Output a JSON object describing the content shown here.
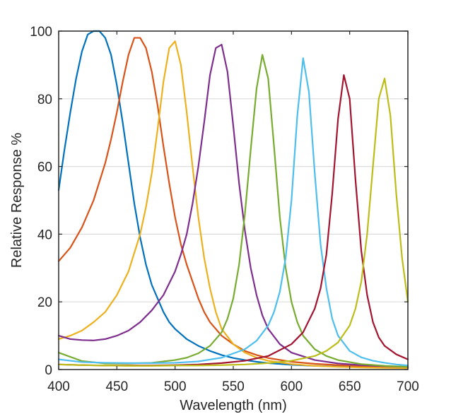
{
  "chart_data": {
    "type": "line",
    "title": "",
    "xlabel": "Wavelength (nm)",
    "ylabel": "Relative Response %",
    "xlim": [
      400,
      700
    ],
    "ylim": [
      0,
      100
    ],
    "xticks": [
      400,
      450,
      500,
      550,
      600,
      650,
      700
    ],
    "xtick_labels": [
      "400",
      "450",
      "500",
      "550",
      "600",
      "650",
      "700"
    ],
    "yticks": [
      0,
      20,
      40,
      60,
      80,
      100
    ],
    "ytick_labels": [
      "0",
      "20",
      "40",
      "60",
      "80",
      "100"
    ],
    "grid": "horizontal",
    "legend": "none",
    "series": [
      {
        "color": "#0072BD",
        "x": [
          400,
          405,
          410,
          415,
          420,
          425,
          430,
          435,
          440,
          445,
          450,
          455,
          460,
          465,
          470,
          475,
          480,
          485,
          490,
          495,
          500,
          510,
          520,
          530,
          540,
          550,
          560,
          570,
          580,
          600,
          620,
          640,
          660,
          680,
          700
        ],
        "y": [
          53,
          65,
          76,
          86,
          94,
          99,
          100,
          100,
          98,
          93,
          84,
          73,
          61,
          49,
          39,
          31,
          25,
          21,
          17,
          14,
          12,
          9,
          7,
          5.5,
          4.3,
          3.4,
          2.8,
          2.3,
          1.9,
          1.4,
          1.1,
          0.9,
          0.7,
          0.6,
          0.5
        ]
      },
      {
        "color": "#D95319",
        "x": [
          400,
          410,
          420,
          430,
          440,
          445,
          450,
          455,
          460,
          465,
          470,
          475,
          480,
          485,
          490,
          495,
          500,
          505,
          510,
          515,
          520,
          525,
          530,
          540,
          550,
          560,
          570,
          580,
          600,
          620,
          640,
          660,
          680,
          700
        ],
        "y": [
          32,
          36,
          42,
          50,
          61,
          68,
          76,
          85,
          93,
          98,
          98,
          95,
          88,
          78,
          66,
          55,
          45,
          37,
          31,
          26,
          21,
          17,
          14,
          10,
          7.5,
          5.5,
          4.3,
          3.4,
          2.3,
          1.7,
          1.3,
          1,
          0.8,
          0.6
        ]
      },
      {
        "color": "#EDB120",
        "x": [
          400,
          410,
          420,
          430,
          440,
          450,
          460,
          470,
          475,
          480,
          485,
          490,
          495,
          500,
          505,
          510,
          515,
          520,
          525,
          530,
          535,
          540,
          550,
          560,
          570,
          580,
          600,
          620,
          640,
          660,
          680,
          700
        ],
        "y": [
          9,
          10,
          11.5,
          14,
          17,
          22,
          29,
          40,
          48,
          58,
          71,
          85,
          95,
          97,
          90,
          76,
          60,
          45,
          33,
          24,
          17,
          12,
          7.5,
          5,
          3.5,
          2.6,
          1.6,
          1.1,
          0.8,
          0.6,
          0.5,
          0.4
        ]
      },
      {
        "color": "#7E2F8E",
        "x": [
          400,
          410,
          420,
          430,
          440,
          450,
          460,
          470,
          480,
          490,
          500,
          505,
          510,
          515,
          520,
          525,
          530,
          535,
          540,
          545,
          550,
          555,
          560,
          565,
          570,
          575,
          580,
          590,
          600,
          620,
          640,
          660,
          680,
          700
        ],
        "y": [
          10,
          9,
          8.7,
          8.6,
          9,
          10,
          11.5,
          14,
          17.5,
          22,
          29,
          34,
          40,
          49,
          60,
          73,
          87,
          95,
          96,
          88,
          72,
          55,
          41,
          30,
          22,
          16,
          12,
          7.5,
          5,
          2.8,
          1.8,
          1.3,
          1,
          0.8
        ]
      },
      {
        "color": "#77AC30",
        "x": [
          400,
          420,
          440,
          460,
          480,
          500,
          510,
          520,
          530,
          540,
          545,
          550,
          555,
          560,
          565,
          570,
          575,
          580,
          585,
          590,
          595,
          600,
          605,
          610,
          620,
          630,
          640,
          660,
          680,
          700
        ],
        "y": [
          5,
          2.5,
          1.8,
          1.8,
          2,
          2.8,
          3.5,
          4.8,
          7,
          11,
          15,
          21,
          31,
          46,
          65,
          83,
          93,
          86,
          66,
          45,
          30,
          20,
          14,
          10,
          6,
          4,
          2.8,
          1.6,
          1.1,
          0.8
        ]
      },
      {
        "color": "#4DBEEE",
        "x": [
          400,
          420,
          440,
          460,
          480,
          500,
          520,
          540,
          560,
          570,
          580,
          585,
          590,
          595,
          600,
          605,
          610,
          615,
          620,
          625,
          630,
          635,
          640,
          650,
          660,
          670,
          680,
          690,
          700
        ],
        "y": [
          3,
          2.2,
          2,
          1.9,
          1.9,
          2,
          2.4,
          3.5,
          6,
          8.5,
          13,
          17,
          23,
          33,
          50,
          75,
          92,
          82,
          58,
          37,
          24,
          15,
          10,
          5.5,
          3.6,
          2.6,
          2,
          1.5,
          1.2
        ]
      },
      {
        "color": "#A2142F",
        "x": [
          400,
          420,
          440,
          460,
          480,
          500,
          520,
          540,
          560,
          580,
          600,
          610,
          620,
          625,
          630,
          635,
          640,
          645,
          650,
          655,
          660,
          665,
          670,
          675,
          680,
          690,
          700
        ],
        "y": [
          1.5,
          1.3,
          1.2,
          1.2,
          1.2,
          1.3,
          1.5,
          1.9,
          2.6,
          4,
          7.5,
          11,
          18,
          24,
          34,
          52,
          74,
          87,
          80,
          56,
          35,
          22,
          14,
          9.5,
          7,
          4.5,
          3
        ]
      },
      {
        "color": "#BDBD1A",
        "x": [
          400,
          420,
          440,
          460,
          480,
          500,
          520,
          540,
          560,
          580,
          600,
          620,
          630,
          640,
          650,
          655,
          660,
          665,
          670,
          675,
          680,
          685,
          690,
          695,
          700
        ],
        "y": [
          1.5,
          1.3,
          1.2,
          1.1,
          1.1,
          1.2,
          1.2,
          1.3,
          1.5,
          1.9,
          2.6,
          4,
          5.5,
          8,
          13,
          18,
          26,
          40,
          60,
          80,
          86,
          75,
          52,
          33,
          20
        ]
      }
    ]
  }
}
